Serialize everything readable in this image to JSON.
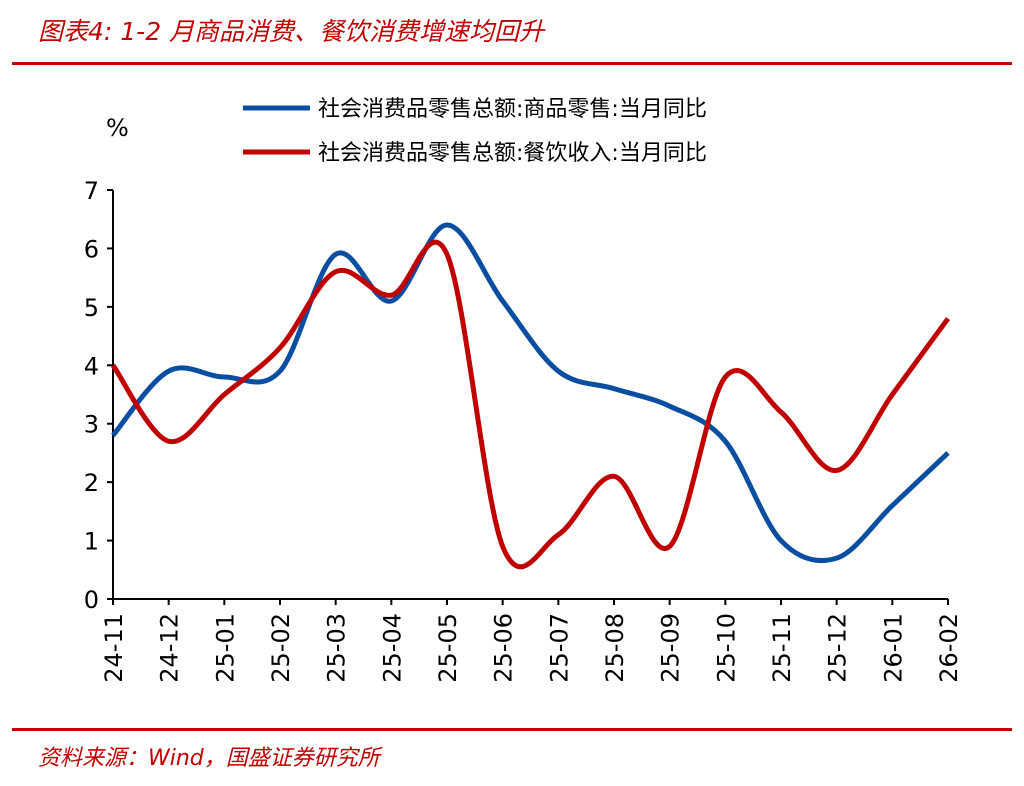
{
  "title": "图表4:  1-2 月商品消费、餐饮消费增速均回升",
  "source": "资料来源：Wind，国盛证券研究所",
  "chart_data": {
    "type": "line",
    "title": "图表4:  1-2 月商品消费、餐饮消费增速均回升",
    "ylabel": "%",
    "xlabel": "",
    "ylim": [
      0,
      7
    ],
    "yticks": [
      "0",
      "1",
      "2",
      "3",
      "4",
      "5",
      "6",
      "7"
    ],
    "categories": [
      "24-11",
      "24-12",
      "25-01",
      "25-02",
      "25-03",
      "25-04",
      "25-05",
      "25-06",
      "25-07",
      "25-08",
      "25-09",
      "25-10",
      "25-11",
      "25-12",
      "26-01",
      "26-02"
    ],
    "legend_position": "top",
    "series": [
      {
        "name": "社会消费品零售总额:商品零售:当月同比",
        "color": "#0a4ea2",
        "values": [
          2.8,
          3.9,
          3.8,
          3.9,
          5.9,
          5.1,
          6.4,
          5.1,
          3.9,
          3.6,
          3.3,
          2.7,
          1.0,
          0.7,
          1.6,
          2.5
        ]
      },
      {
        "name": "社会消费品零售总额:餐饮收入:当月同比",
        "color": "#c00000",
        "values": [
          4.0,
          2.7,
          3.5,
          4.3,
          5.6,
          5.2,
          5.9,
          0.9,
          1.1,
          2.1,
          0.9,
          3.8,
          3.2,
          2.2,
          3.5,
          4.8
        ]
      }
    ]
  }
}
